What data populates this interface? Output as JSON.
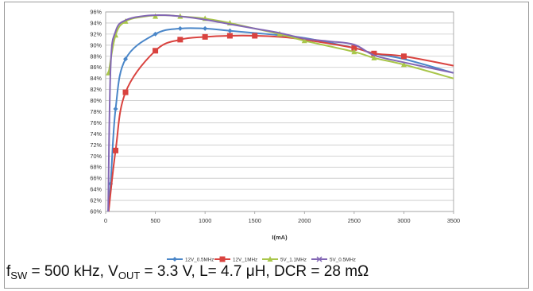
{
  "chart_data": {
    "type": "line",
    "title": "",
    "xlabel": "I(mA)",
    "ylabel": "",
    "xlim": [
      0,
      3500
    ],
    "ylim": [
      60,
      96
    ],
    "x_ticks": [
      0,
      500,
      1000,
      1500,
      2000,
      2500,
      3000,
      3500
    ],
    "y_ticks": [
      60,
      62,
      64,
      66,
      68,
      70,
      72,
      74,
      76,
      78,
      80,
      82,
      84,
      86,
      88,
      90,
      92,
      94,
      96
    ],
    "y_tick_suffix": "%",
    "grid": "horizontal",
    "legend_position": "bottom",
    "series": [
      {
        "name": "12V_0.5MHz",
        "color": "#4a86c8",
        "marker": "diamond",
        "x": [
          25,
          50,
          100,
          200,
          500,
          750,
          1000,
          1250,
          1500,
          1750,
          2000,
          2500,
          2700,
          3000,
          3500
        ],
        "y": [
          60,
          65,
          78.5,
          87.5,
          92,
          93,
          93,
          92.6,
          92.2,
          91.8,
          91.3,
          89.5,
          88.5,
          87.5,
          85
        ],
        "markers_x": [
          50,
          100,
          200,
          500,
          750,
          1000,
          1250
        ],
        "markers_y": [
          65,
          78.5,
          87.5,
          92,
          93,
          93,
          92.6
        ]
      },
      {
        "name": "12V_1MHz",
        "color": "#d9433f",
        "marker": "square",
        "x": [
          30,
          100,
          200,
          500,
          750,
          1000,
          1250,
          1500,
          1750,
          2000,
          2500,
          2700,
          3000,
          3500
        ],
        "y": [
          60,
          71,
          81.5,
          89,
          91,
          91.5,
          91.7,
          91.7,
          91.5,
          91,
          89.5,
          88.5,
          88,
          86.3
        ],
        "markers_x": [
          100,
          200,
          500,
          750,
          1000,
          1250,
          1500,
          2500,
          2700,
          3000
        ],
        "markers_y": [
          71,
          81.5,
          89,
          91,
          91.5,
          91.7,
          91.7,
          89.5,
          88.5,
          88
        ]
      },
      {
        "name": "5V_1.1MHz",
        "color": "#a9c64a",
        "marker": "triangle",
        "x": [
          30,
          100,
          200,
          400,
          600,
          750,
          1000,
          1250,
          1500,
          1750,
          2000,
          2500,
          2700,
          3000,
          3500
        ],
        "y": [
          85,
          91.8,
          94.3,
          95.2,
          95.4,
          95.2,
          94.8,
          94,
          93,
          92,
          90.8,
          88.8,
          87.7,
          86.5,
          84
        ],
        "markers_x": [
          30,
          100,
          200,
          500,
          750,
          1000,
          1250,
          1750,
          2000,
          2500,
          2700,
          3000
        ],
        "markers_y": [
          85,
          91.8,
          94.3,
          95.2,
          95.2,
          94.8,
          94,
          92,
          90.8,
          88.8,
          87.7,
          86.5
        ]
      },
      {
        "name": "5V_0.5MHz",
        "color": "#8266b4",
        "marker": "x",
        "x": [
          25,
          50,
          100,
          200,
          400,
          600,
          800,
          1000,
          1250,
          1500,
          1750,
          2000,
          2250,
          2500,
          2700,
          3000,
          3500
        ],
        "y": [
          60,
          86,
          92.5,
          94.5,
          95.3,
          95.4,
          95.1,
          94.6,
          93.8,
          93,
          92.2,
          91.2,
          90.7,
          90.1,
          88.2,
          86.9,
          85
        ],
        "markers_x": [],
        "markers_y": []
      }
    ]
  },
  "caption": {
    "f": "f",
    "f_sub": "SW",
    "freq_part": " = 500 kHz, V",
    "v_sub": "OUT",
    "rest": " = 3.3 V, L= 4.7 μH, DCR = 28 mΩ"
  }
}
